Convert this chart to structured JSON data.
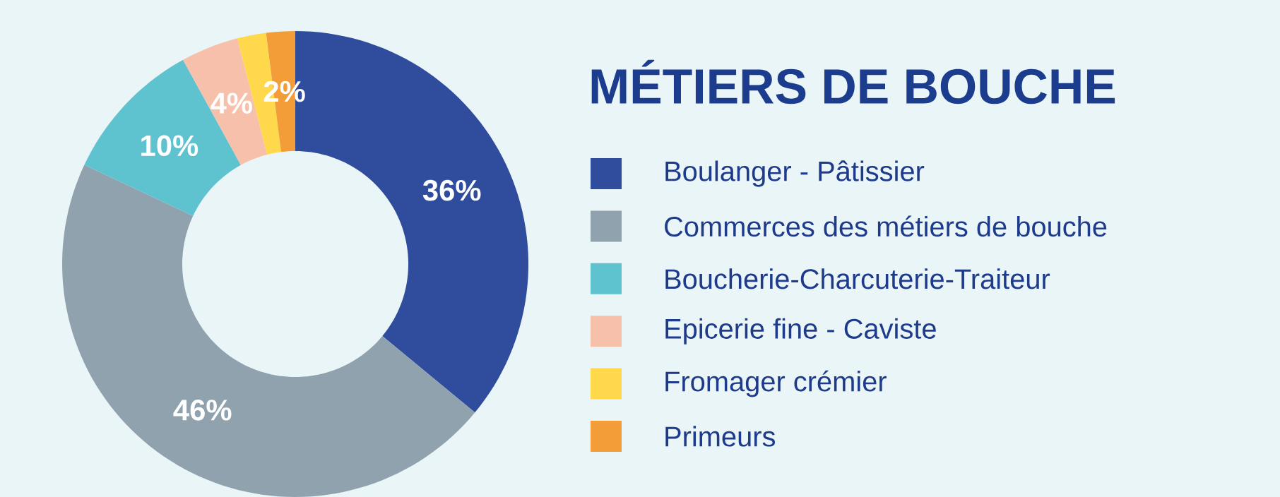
{
  "chart_data": {
    "type": "donut",
    "title": "MÉTIERS DE BOUCHE",
    "categories": [
      "Boulanger - Pâtissier",
      "Commerces des métiers de bouche",
      "Boucherie-Charcuterie-Traiteur",
      "Epicerie fine - Caviste",
      "Fromager crémier",
      "Primeurs"
    ],
    "values": [
      36,
      46,
      10,
      4,
      2,
      2
    ],
    "colors": [
      "#2f4d9c",
      "#8fa2ae",
      "#5fc3cf",
      "#f7c0aa",
      "#ffd84c",
      "#f39d38"
    ],
    "value_labels": [
      "36%",
      "46%",
      "10%",
      "4%",
      null,
      "2%"
    ],
    "legend": "right"
  }
}
